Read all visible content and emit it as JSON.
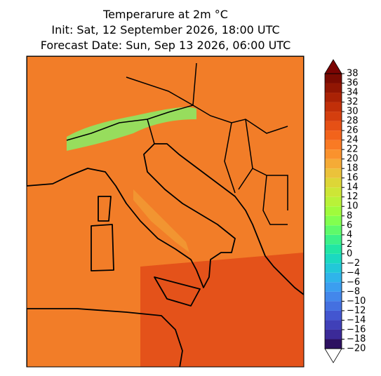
{
  "chart_data": {
    "type": "map",
    "title": [
      "Temperarure at 2m °C",
      "Init: Sat, 12 September 2026, 18:00 UTC",
      "Forecast Date: Sun, Sep 13 2026, 06:00 UTC"
    ],
    "colorbar": {
      "lim": [
        -20,
        38
      ],
      "ticks": [
        {
          "value": -20,
          "label": "−20"
        },
        {
          "value": -18,
          "label": "−18"
        },
        {
          "value": -16,
          "label": "−16"
        },
        {
          "value": -14,
          "label": "−14"
        },
        {
          "value": -12,
          "label": "−12"
        },
        {
          "value": -10,
          "label": "−10"
        },
        {
          "value": -8,
          "label": "−8"
        },
        {
          "value": -6,
          "label": "−6"
        },
        {
          "value": -4,
          "label": "−4"
        },
        {
          "value": -2,
          "label": "−2"
        },
        0,
        2,
        4,
        6,
        8,
        10,
        12,
        14,
        16,
        18,
        20,
        22,
        24,
        26,
        28,
        30,
        32,
        34,
        36,
        38
      ],
      "colors": [
        "#2d1060",
        "#3b2a98",
        "#4040b8",
        "#4356d0",
        "#4470e0",
        "#4387eb",
        "#3b9ef0",
        "#2fb4ea",
        "#22c8d8",
        "#1bd9c0",
        "#21e6a4",
        "#3cf188",
        "#5ffa6a",
        "#82ff4f",
        "#a0fb3c",
        "#b9f238",
        "#cde636",
        "#ddd637",
        "#ebc23a",
        "#f5ab36",
        "#fa922d",
        "#f97a24",
        "#f2631b",
        "#e65015",
        "#d43e0e",
        "#c12f09",
        "#aa2205",
        "#911603",
        "#7a0b02"
      ],
      "under_color": "#ffffff",
      "over_color": "#7a0403"
    }
  }
}
